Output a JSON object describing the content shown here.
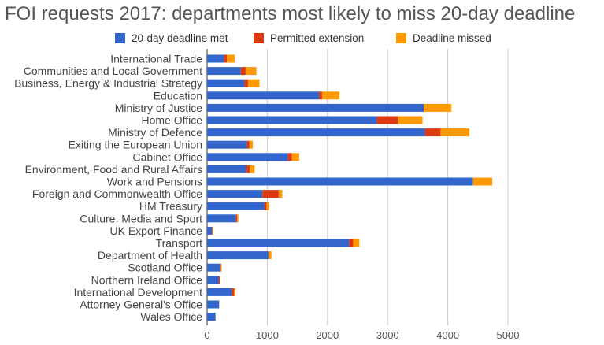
{
  "chart_data": {
    "type": "bar",
    "orientation": "horizontal",
    "stacked": true,
    "title": "FOI requests 2017: departments most likely to miss 20-day deadline",
    "xlabel": "",
    "ylabel": "",
    "xlim": [
      0,
      5000
    ],
    "xticks": [
      0,
      1000,
      2000,
      3000,
      4000,
      5000
    ],
    "grid": true,
    "legend_position": "top",
    "categories": [
      "International Trade",
      "Communities and Local Government",
      "Business, Energy & Industrial Strategy",
      "Education",
      "Ministry of Justice",
      "Home Office",
      "Ministry of Defence",
      "Exiting the European Union",
      "Cabinet Office",
      "Environment, Food and Rural Affairs",
      "Work and Pensions",
      "Foreign and Commonwealth Office",
      "HM Treasury",
      "Culture, Media and Sport",
      "UK Export Finance",
      "Transport",
      "Department of Health",
      "Scotland Office",
      "Northern Ireland Office",
      "International Development",
      "Attorney General's Office",
      "Wales Office"
    ],
    "series": [
      {
        "name": "20-day deadline met",
        "color": "#3366cc",
        "values": [
          280,
          560,
          620,
          1860,
          3600,
          2820,
          3620,
          660,
          1340,
          650,
          4420,
          920,
          950,
          480,
          80,
          2360,
          1020,
          220,
          190,
          410,
          200,
          140
        ]
      },
      {
        "name": "Permitted extension",
        "color": "#dc3912",
        "values": [
          50,
          80,
          60,
          50,
          0,
          350,
          260,
          40,
          70,
          60,
          0,
          270,
          40,
          20,
          10,
          70,
          0,
          10,
          20,
          40,
          0,
          0
        ]
      },
      {
        "name": "Deadline missed",
        "color": "#ff9900",
        "values": [
          130,
          180,
          190,
          290,
          460,
          410,
          480,
          60,
          120,
          80,
          320,
          60,
          40,
          20,
          10,
          100,
          50,
          10,
          0,
          20,
          0,
          0
        ]
      }
    ]
  }
}
